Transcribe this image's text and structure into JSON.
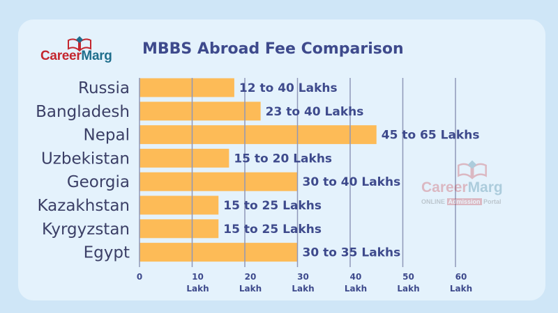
{
  "brand": {
    "logo_part1": "Career",
    "logo_part2": "Marg",
    "watermark_part1": "Career",
    "watermark_part2": "Marg",
    "watermark_sub_a": "ONLINE ",
    "watermark_sub_b": "Admission",
    "watermark_sub_c": " Portal",
    "red": "#c4262e",
    "teal": "#1f6e8c"
  },
  "chart_data": {
    "type": "bar",
    "orientation": "horizontal",
    "title": "MBBS Abroad Fee Comparison",
    "categories": [
      "Russia",
      "Bangladesh",
      "Nepal",
      "Uzbekistan",
      "Georgia",
      "Kazakhstan",
      "Kyrgyzstan",
      "Egypt"
    ],
    "values": [
      18,
      23,
      45,
      17,
      30,
      15,
      15,
      30
    ],
    "data_labels": [
      "12 to 40 Lakhs",
      "23 to 40 Lakhs",
      "45 to 65 Lakhs",
      "15 to 20 Lakhs",
      "30 to 40 Lakhs",
      "15 to 25 Lakhs",
      "15 to 25 Lakhs",
      "30 to 35 Lakhs"
    ],
    "x_ticks": [
      0,
      10,
      20,
      30,
      40,
      50,
      60
    ],
    "x_tick_unit": "Lakh",
    "xlim": [
      0,
      60
    ],
    "grid": true,
    "bar_color": "#fdbb57",
    "grid_color": "#8f97b8"
  }
}
